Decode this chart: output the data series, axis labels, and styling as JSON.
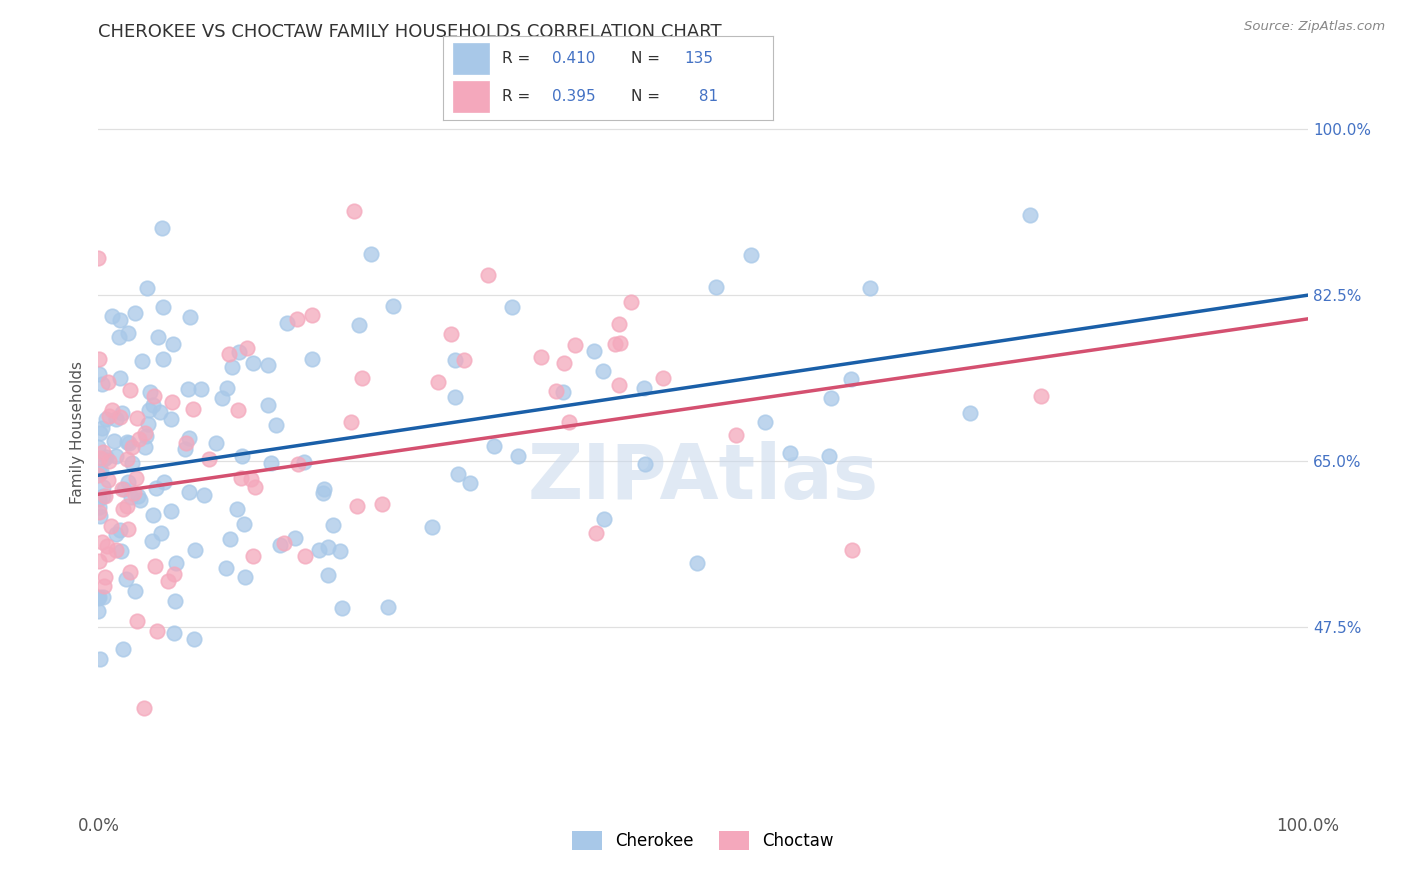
{
  "title": "CHEROKEE VS CHOCTAW FAMILY HOUSEHOLDS CORRELATION CHART",
  "source": "Source: ZipAtlas.com",
  "ylabel": "Family Households",
  "cherokee_R": 0.41,
  "cherokee_N": 135,
  "choctaw_R": 0.395,
  "choctaw_N": 81,
  "cherokee_color": "#a8c8e8",
  "choctaw_color": "#f4a8bc",
  "cherokee_line_color": "#1a5fa8",
  "choctaw_line_color": "#d45070",
  "watermark_color": "#c8d8ec",
  "background_color": "#ffffff",
  "grid_color": "#e0e0e0",
  "right_label_color": "#4472c4",
  "title_color": "#333333",
  "source_color": "#888888",
  "ylabel_color": "#555555",
  "yticks": [
    0.475,
    0.65,
    0.825,
    1.0
  ],
  "ytick_labels": [
    "47.5%",
    "65.0%",
    "82.5%",
    "100.0%"
  ],
  "ylim": [
    0.28,
    1.08
  ],
  "xlim": [
    0.0,
    1.0
  ],
  "cherokee_line_start": 0.635,
  "cherokee_line_end": 0.825,
  "choctaw_line_start": 0.615,
  "choctaw_line_end": 0.8
}
